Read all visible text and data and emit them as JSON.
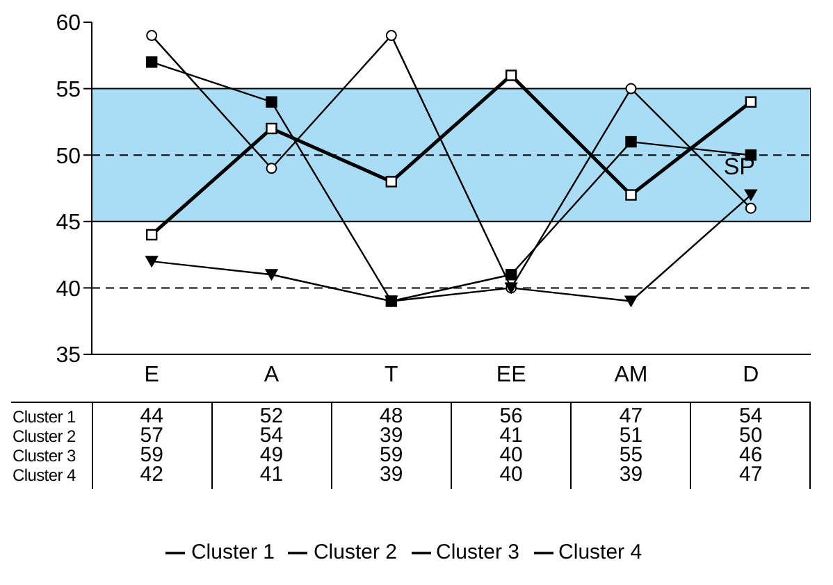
{
  "chart_data": {
    "type": "line",
    "categories": [
      "E",
      "A",
      "T",
      "EE",
      "AM",
      "D"
    ],
    "series": [
      {
        "name": "Cluster 1",
        "color": "#000000",
        "values": [
          44,
          52,
          48,
          56,
          47,
          54
        ],
        "marker": "square"
      },
      {
        "name": "Cluster 2",
        "color": "#000000",
        "values": [
          57,
          54,
          39,
          41,
          51,
          50
        ],
        "marker": "square"
      },
      {
        "name": "Cluster 3",
        "color": "#000000",
        "values": [
          59,
          49,
          59,
          40,
          55,
          46
        ],
        "marker": "circle"
      },
      {
        "name": "Cluster 4",
        "color": "#000000",
        "values": [
          42,
          41,
          39,
          40,
          39,
          47
        ],
        "marker": "triangle"
      }
    ],
    "ylim": [
      35,
      60
    ],
    "yticks": [
      35,
      40,
      45,
      50,
      55,
      60
    ],
    "bands": [
      {
        "axis": "y",
        "from": 45,
        "to": 55,
        "color": "#abdcf5"
      }
    ],
    "ref_lines": [
      {
        "axis": "y",
        "value": 50,
        "label": "SP",
        "line_style": "dashed"
      },
      {
        "axis": "y",
        "value": 40,
        "line_style": "dashed"
      }
    ],
    "data_labels": true,
    "legend": "bottom",
    "grid": false
  }
}
